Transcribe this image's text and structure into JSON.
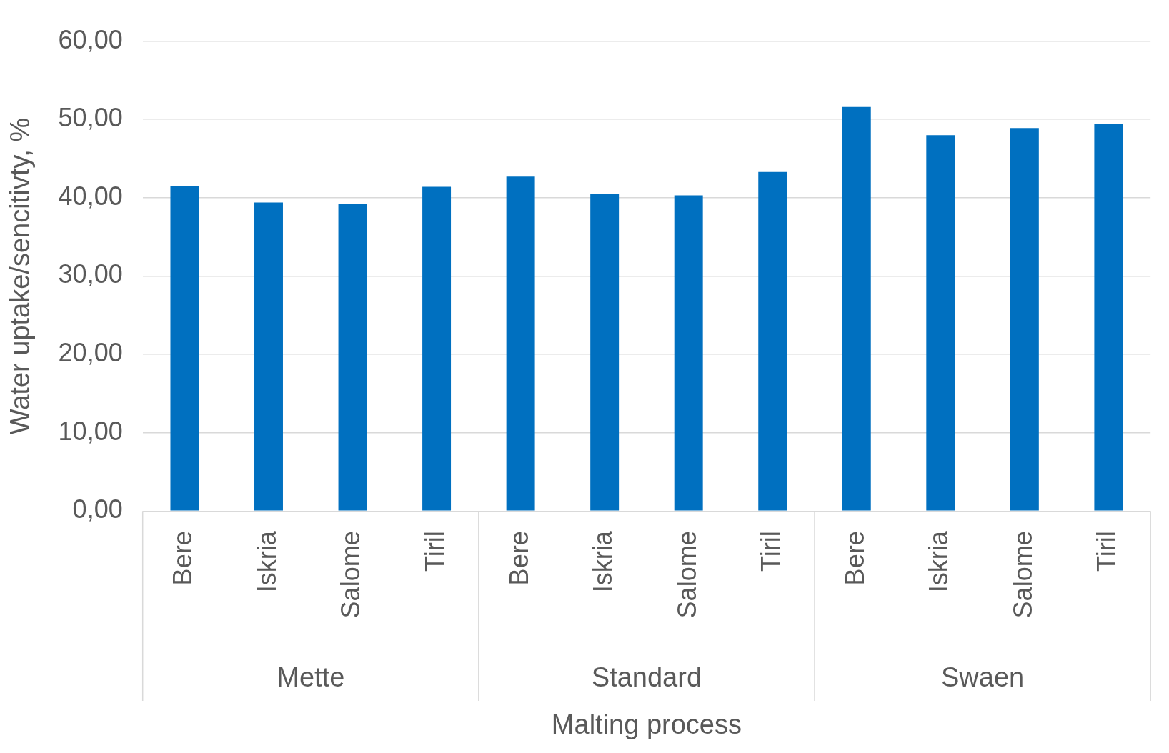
{
  "chart_data": {
    "type": "bar",
    "xlabel": "Malting process",
    "ylabel": "Water uptake/sencitivty, %",
    "categories": [
      "Bere",
      "Iskria",
      "Salome",
      "Tiril",
      "Bere",
      "Iskria",
      "Salome",
      "Tiril",
      "Bere",
      "Iskria",
      "Salome",
      "Tiril"
    ],
    "values": [
      41.5,
      39.4,
      39.2,
      41.4,
      42.7,
      40.5,
      40.3,
      43.3,
      51.6,
      48.0,
      48.9,
      49.4
    ],
    "color": "#0070c0",
    "annotations": [
      "Mette",
      "Standard",
      "Swaen"
    ],
    "ylim": [
      0,
      60
    ],
    "yticks": [
      {
        "value": 0,
        "label": "0,00"
      },
      {
        "value": 10,
        "label": "10,00"
      },
      {
        "value": 20,
        "label": "20,00"
      },
      {
        "value": 30,
        "label": "30,00"
      },
      {
        "value": 40,
        "label": "40,00"
      },
      {
        "value": 50,
        "label": "50,00"
      },
      {
        "value": 60,
        "label": "60,00"
      }
    ],
    "grid": "y",
    "legend": false
  }
}
